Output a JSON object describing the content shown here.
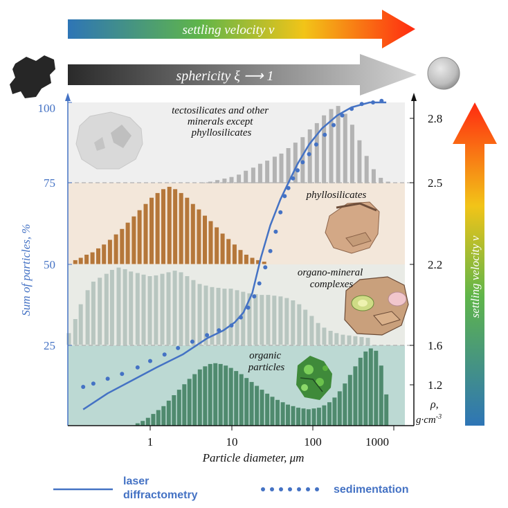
{
  "arrows": {
    "top_label": "settling velocity v",
    "sphericity_label": "sphericity ξ ⟶ 1",
    "right_label": "settling velocity v"
  },
  "zones": {
    "tecto": "tectosilicates and other minerals except phyllosilicates",
    "tecto_lines": [
      "tectosilicates and other",
      "minerals except",
      "phyllosilicates"
    ],
    "phyllo": "phyllosilicates",
    "organo_lines": [
      "organo-mineral",
      "complexes"
    ],
    "organic_lines": [
      "organic",
      "particles"
    ]
  },
  "axes": {
    "left_label": "Sum of particles, %",
    "left_ticks": [
      "100",
      "75",
      "50",
      "25"
    ],
    "right_ticks": [
      "2.8",
      "2.5",
      "2.2",
      "1.6",
      "1.2"
    ],
    "right_unit_line1": "ρ,",
    "right_unit_line2": "g·cm",
    "right_unit_sup": "-3",
    "x_label": "Particle diameter, μm",
    "x_ticks": [
      "1",
      "10",
      "100",
      "1000"
    ]
  },
  "legend": {
    "line_label_1": "laser",
    "line_label_2": "diffractometry",
    "dots_label": "sedimentation"
  },
  "colors": {
    "blue": "#4472c4",
    "tecto_bar": "#b3b3b3",
    "phyllo_bar": "#b5773a",
    "organo_bar": "#b8c6c0",
    "organic_bar": "#4f8a6e",
    "tecto_bg": "#efefef",
    "phyllo_bg": "#f3e7da",
    "organo_bg": "#e9ebe6",
    "organic_bg": "#bcd9d3"
  },
  "chart_data": {
    "type": "bar",
    "x_scale": "log",
    "xlabel": "Particle diameter, μm",
    "ylabel": "Sum of particles, %",
    "ylim": [
      0,
      100
    ],
    "y2_label": "ρ, g·cm-3",
    "y2_ticks": [
      2.8,
      2.5,
      2.2,
      1.6,
      1.2
    ],
    "zone_boundaries_percent": [
      75,
      50,
      25
    ],
    "histograms": [
      {
        "name": "tectosilicates and other minerals except phyllosilicates",
        "color": "#b3b3b3",
        "zone": [
          75,
          100
        ],
        "x": [
          4.5,
          5.5,
          6.7,
          8.2,
          10,
          12.3,
          15,
          18.5,
          22.5,
          27.5,
          34,
          41,
          50,
          61,
          75,
          92,
          112,
          137,
          168,
          205,
          250,
          305,
          375,
          458,
          560,
          685,
          840
        ],
        "values": [
          1,
          2,
          4,
          6,
          8,
          11,
          16,
          20,
          25,
          29,
          34,
          38,
          45,
          52,
          59,
          69,
          77,
          87,
          95,
          99,
          89,
          75,
          55,
          35,
          18,
          7,
          2
        ]
      },
      {
        "name": "phyllosilicates",
        "color": "#b5773a",
        "zone": [
          50,
          75
        ],
        "x": [
          0.12,
          0.14,
          0.165,
          0.195,
          0.23,
          0.27,
          0.32,
          0.38,
          0.45,
          0.53,
          0.63,
          0.74,
          0.88,
          1.04,
          1.23,
          1.45,
          1.72,
          2.03,
          2.4,
          2.84,
          3.36,
          3.97,
          4.7,
          5.55,
          6.57,
          7.77,
          9.19,
          10.9,
          12.9,
          15.2,
          18,
          21.3,
          25.2
        ],
        "values": [
          5,
          8,
          12,
          15,
          20,
          25,
          31,
          38,
          45,
          53,
          61,
          69,
          77,
          85,
          91,
          96,
          99,
          96,
          91,
          85,
          77,
          70,
          62,
          55,
          47,
          39,
          32,
          25,
          18,
          12,
          8,
          5,
          3
        ]
      },
      {
        "name": "organo-mineral complexes",
        "color": "#b8c6c0",
        "zone": [
          25,
          50
        ],
        "x": [
          0.1,
          0.12,
          0.14,
          0.17,
          0.2,
          0.24,
          0.29,
          0.34,
          0.41,
          0.49,
          0.58,
          0.7,
          0.83,
          0.99,
          1.18,
          1.41,
          1.68,
          2.01,
          2.39,
          2.85,
          3.4,
          4.06,
          4.84,
          5.77,
          6.89,
          8.21,
          9.8,
          11.7,
          13.9,
          16.6,
          19.8,
          23.6,
          28.2,
          33.6,
          40.1,
          47.8,
          57,
          68,
          81,
          97,
          116,
          138,
          165,
          196,
          234,
          280,
          333,
          398,
          475
        ],
        "values": [
          15,
          33,
          52,
          70,
          81,
          86,
          91,
          96,
          99,
          97,
          94,
          92,
          90,
          88,
          89,
          91,
          93,
          95,
          93,
          88,
          83,
          78,
          76,
          74,
          73,
          72,
          72,
          70,
          68,
          66,
          65,
          64,
          64,
          63,
          62,
          60,
          57,
          52,
          45,
          37,
          28,
          22,
          18,
          15,
          13,
          12,
          11,
          10,
          9
        ]
      },
      {
        "name": "organic particles",
        "color": "#4f8a6e",
        "zone": [
          0,
          25
        ],
        "x": [
          0.7,
          0.81,
          0.94,
          1.09,
          1.26,
          1.46,
          1.69,
          1.96,
          2.27,
          2.63,
          3.04,
          3.52,
          4.08,
          4.73,
          5.47,
          6.34,
          7.34,
          8.5,
          9.84,
          11.4,
          13.2,
          15.3,
          17.7,
          20.5,
          23.7,
          27.5,
          31.8,
          36.8,
          42.7,
          49.4,
          57.2,
          66.2,
          76.7,
          88.8,
          103,
          119,
          138,
          160,
          185,
          214,
          248,
          287,
          333,
          385,
          446,
          517,
          598,
          693,
          802
        ],
        "values": [
          3,
          6,
          10,
          15,
          20,
          25,
          32,
          39,
          46,
          53,
          60,
          66,
          72,
          76,
          79,
          80,
          79,
          77,
          74,
          70,
          66,
          61,
          56,
          51,
          46,
          41,
          37,
          33,
          30,
          27,
          25,
          23,
          22,
          21,
          22,
          23,
          26,
          30,
          36,
          44,
          54,
          65,
          76,
          87,
          95,
          99,
          96,
          77,
          40
        ]
      }
    ],
    "series": [
      {
        "name": "laser diffractometry",
        "style": "line",
        "x": [
          0.15,
          0.3,
          0.6,
          1.2,
          2.5,
          5,
          8,
          11,
          14,
          18,
          23,
          30,
          40,
          52,
          65,
          90,
          130,
          200,
          300,
          500,
          800
        ],
        "y": [
          5,
          10,
          14,
          18,
          22,
          27,
          29.5,
          32,
          35,
          41,
          52,
          62,
          70,
          76,
          81,
          87,
          92,
          96,
          98.5,
          100,
          100
        ]
      },
      {
        "name": "sedimentation",
        "style": "dots",
        "x": [
          0.15,
          0.2,
          0.3,
          0.45,
          0.7,
          1,
          1.5,
          2.2,
          3.3,
          5,
          7,
          10,
          13,
          16,
          19,
          22,
          26,
          30,
          35,
          40,
          45,
          50,
          57,
          65,
          75,
          90,
          110,
          140,
          180,
          230,
          300,
          400,
          550,
          700
        ],
        "y": [
          12,
          13,
          14.5,
          16,
          18,
          20,
          22,
          24,
          26,
          28,
          29.5,
          31,
          33.5,
          36.5,
          40,
          44,
          49,
          54,
          60,
          66,
          71,
          73.5,
          76.5,
          79,
          81.5,
          84,
          87,
          90,
          93,
          96,
          98,
          99.5,
          100,
          100.5
        ]
      }
    ]
  }
}
